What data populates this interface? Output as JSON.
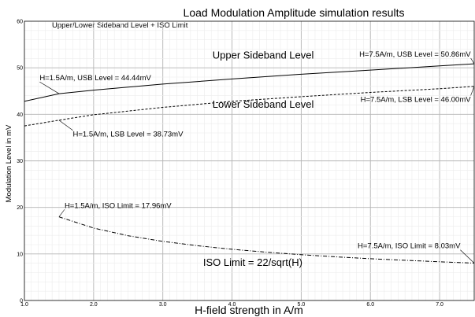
{
  "chart_data": {
    "type": "line",
    "title": "Load Modulation Amplitude simulation results",
    "subtitle": "Upper/Lower Sideband Level + ISO Limit",
    "xlabel": "H-field strength in A/m",
    "ylabel": "Modulation Level in mV",
    "xlim": [
      1.0,
      7.5
    ],
    "ylim": [
      0,
      60
    ],
    "x_ticks": [
      1.0,
      2.0,
      3.0,
      4.0,
      5.0,
      6.0,
      7.0
    ],
    "x_tick_labels": [
      "1.0",
      "2.0",
      "3.0",
      "4.0",
      "5.0",
      "6.0",
      "7.0"
    ],
    "y_ticks": [
      0,
      10,
      20,
      30,
      40,
      50,
      60
    ],
    "y_tick_labels": [
      "0",
      "10",
      "20",
      "30",
      "40",
      "50",
      "60"
    ],
    "grid": true,
    "series": [
      {
        "name": "Upper Sideband Level",
        "x": [
          1.0,
          1.5,
          2.0,
          3.0,
          4.0,
          5.0,
          6.0,
          7.0,
          7.5
        ],
        "values": [
          42.8,
          44.44,
          45.2,
          46.5,
          47.6,
          48.6,
          49.5,
          50.4,
          50.86
        ],
        "color": "#000000",
        "dash": "solid"
      },
      {
        "name": "Lower Sideband Level",
        "x": [
          1.0,
          1.5,
          2.0,
          3.0,
          4.0,
          5.0,
          6.0,
          7.0,
          7.5
        ],
        "values": [
          37.5,
          38.73,
          39.9,
          41.5,
          42.8,
          43.8,
          44.7,
          45.5,
          46.0
        ],
        "color": "#000000",
        "dash": "dashed"
      },
      {
        "name": "ISO Limit = 22/sqrt(H)",
        "x": [
          1.5,
          2.0,
          2.5,
          3.0,
          3.5,
          4.0,
          4.5,
          5.0,
          5.5,
          6.0,
          6.5,
          7.0,
          7.5
        ],
        "values": [
          17.96,
          15.56,
          13.91,
          12.7,
          11.76,
          11.0,
          10.37,
          9.84,
          9.38,
          8.98,
          8.63,
          8.32,
          8.03
        ],
        "color": "#000000",
        "dash": "dashdot"
      }
    ],
    "annotations": [
      {
        "text": "H=1.5A/m, USB Level = 44.44mV",
        "x": 1.5,
        "y": 44.44,
        "tx": 1.22,
        "ty": 47.3,
        "anchor": "start"
      },
      {
        "text": "H=7.5A/m, USB Level = 50.86mV",
        "x": 7.5,
        "y": 50.86,
        "tx": 7.45,
        "ty": 52.4,
        "anchor": "end"
      },
      {
        "text": "H=7.5A/m, LSB Level = 46.00mV",
        "x": 7.5,
        "y": 46.0,
        "tx": 7.45,
        "ty": 42.7,
        "anchor": "end"
      },
      {
        "text": "H=1.5A/m, LSB Level = 38.73mV",
        "x": 1.5,
        "y": 38.73,
        "tx": 1.7,
        "ty": 35.2,
        "anchor": "start"
      },
      {
        "text": "H=1.5A/m, ISO Limit = 17.96mV",
        "x": 1.5,
        "y": 17.96,
        "tx": 1.58,
        "ty": 19.9,
        "anchor": "start"
      },
      {
        "text": "H=7.5A/m, ISO Limit = 8.03mV",
        "x": 7.5,
        "y": 8.03,
        "tx": 7.3,
        "ty": 11.2,
        "anchor": "end"
      }
    ],
    "series_labels": [
      {
        "text": "Upper Sideband Level",
        "x": 4.45,
        "y": 52.0
      },
      {
        "text": "Lower Sideband Level",
        "x": 4.45,
        "y": 41.4
      },
      {
        "text": "ISO Limit = 22/sqrt(H)",
        "x": 4.3,
        "y": 7.4
      }
    ]
  }
}
